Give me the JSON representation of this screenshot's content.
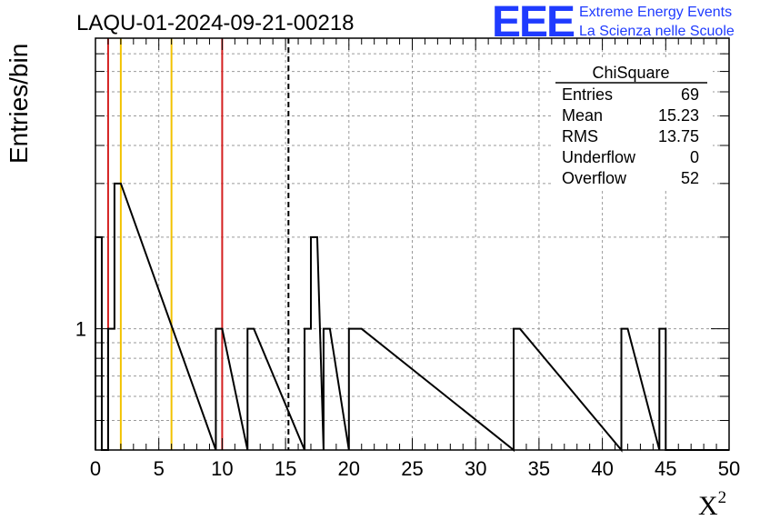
{
  "chart_data": {
    "type": "histogram",
    "title": "LAQU-01-2024-09-21-00218",
    "xlabel": "X",
    "xlabel_superscript": "2",
    "ylabel": "Entries/bin",
    "xlim": [
      0,
      50
    ],
    "ylim_log": [
      0.4,
      9
    ],
    "log_y": true,
    "bin_width": 0.5,
    "x_ticks": [
      "0",
      "5",
      "10",
      "15",
      "20",
      "25",
      "30",
      "35",
      "40",
      "45",
      "50"
    ],
    "y_ticks": [
      {
        "value": 1,
        "label": "1"
      }
    ],
    "bins": [
      {
        "x_low": 0.0,
        "count": 2
      },
      {
        "x_low": 0.5,
        "count": 0
      },
      {
        "x_low": 1.0,
        "count": 1
      },
      {
        "x_low": 1.5,
        "count": 3
      },
      {
        "x_low": 9.5,
        "count": 1
      },
      {
        "x_low": 12.0,
        "count": 1
      },
      {
        "x_low": 16.5,
        "count": 1
      },
      {
        "x_low": 17.0,
        "count": 2
      },
      {
        "x_low": 18.0,
        "count": 1
      },
      {
        "x_low": 20.0,
        "count": 1
      },
      {
        "x_low": 20.5,
        "count": 1
      },
      {
        "x_low": 33.0,
        "count": 1
      },
      {
        "x_low": 41.5,
        "count": 1
      },
      {
        "x_low": 44.5,
        "count": 1
      }
    ],
    "reference_lines": [
      {
        "x": 1.0,
        "color": "#d42020",
        "style": "solid"
      },
      {
        "x": 2.0,
        "color": "#f2c200",
        "style": "solid"
      },
      {
        "x": 6.0,
        "color": "#f2c200",
        "style": "solid"
      },
      {
        "x": 10.0,
        "color": "#d42020",
        "style": "solid"
      },
      {
        "x": 15.23,
        "color": "#000000",
        "style": "dashed"
      }
    ],
    "grid": true,
    "stats_box": {
      "title": "ChiSquare",
      "rows": [
        {
          "label": "Entries",
          "value": "69"
        },
        {
          "label": "Mean",
          "value": "15.23"
        },
        {
          "label": "RMS",
          "value": "13.75"
        },
        {
          "label": "Underflow",
          "value": "0"
        },
        {
          "label": "Overflow",
          "value": "52"
        }
      ]
    }
  },
  "logo": {
    "mark": "EEE",
    "line1": "Extreme Energy Events",
    "line2": "La Scienza nelle Scuole",
    "color": "#1f3bff"
  }
}
